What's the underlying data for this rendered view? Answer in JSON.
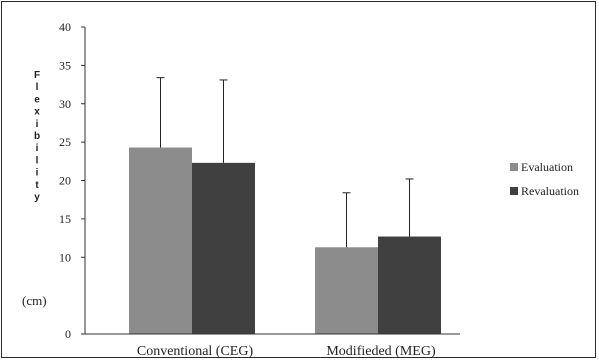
{
  "chart_data": {
    "type": "bar",
    "title": "",
    "xlabel": "",
    "ylabel": "Flexibility",
    "yunit": "(cm)",
    "categories": [
      "Conventional (CEG)",
      "Modifieded (MEG)"
    ],
    "yticks": [
      0,
      10,
      15,
      20,
      25,
      30,
      35,
      40
    ],
    "ylim": [
      0,
      40
    ],
    "legend_position": "right",
    "grid": false,
    "series": [
      {
        "name": "Evaluation",
        "color": "#8c8c8c",
        "values": [
          24.3,
          11.3
        ],
        "error_plus": [
          9.1,
          7.1
        ]
      },
      {
        "name": "Revaluation",
        "color": "#404040",
        "values": [
          22.3,
          12.7
        ],
        "error_plus": [
          10.8,
          7.5
        ]
      }
    ]
  }
}
